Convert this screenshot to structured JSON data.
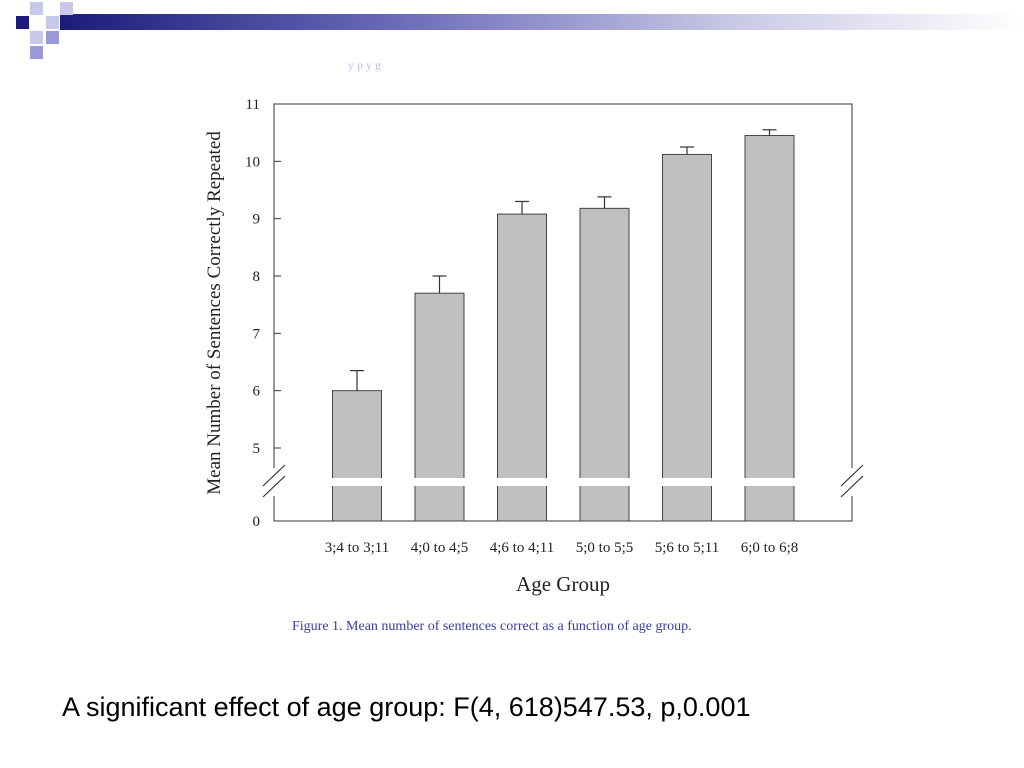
{
  "slide": {
    "faint_heading": "y p y g",
    "caption": "Figure 1.  Mean number of sentences correct as a function of age group.",
    "footnote": "A significant effect of age group: F(4, 618)547.53, p,0.001",
    "colors": {
      "bar_fill": "#c0c0c0",
      "bar_stroke": "#444444",
      "caption": "#3a3aa8",
      "decor_navy": "#1b1b7a",
      "decor_periwinkle": "#9a9ad6"
    }
  },
  "chart_data": {
    "type": "bar",
    "title": "",
    "xlabel": "Age Group",
    "ylabel": "Mean Number of Sentences Correctly Repeated",
    "categories": [
      "3;4 to 3;11",
      "4;0 to 4;5",
      "4;6 to 4;11",
      "5;0 to 5;5",
      "5;6 to 5;11",
      "6;0 to 6;8"
    ],
    "values": [
      6.0,
      7.7,
      9.08,
      9.18,
      10.12,
      10.45
    ],
    "error_upper": [
      0.35,
      0.3,
      0.22,
      0.2,
      0.13,
      0.1
    ],
    "y_ticks": [
      0,
      5,
      6,
      7,
      8,
      9,
      10,
      11
    ],
    "ylim": [
      0,
      11
    ],
    "axis_break": "between 0 and 5",
    "grid": false,
    "legend": "none"
  }
}
